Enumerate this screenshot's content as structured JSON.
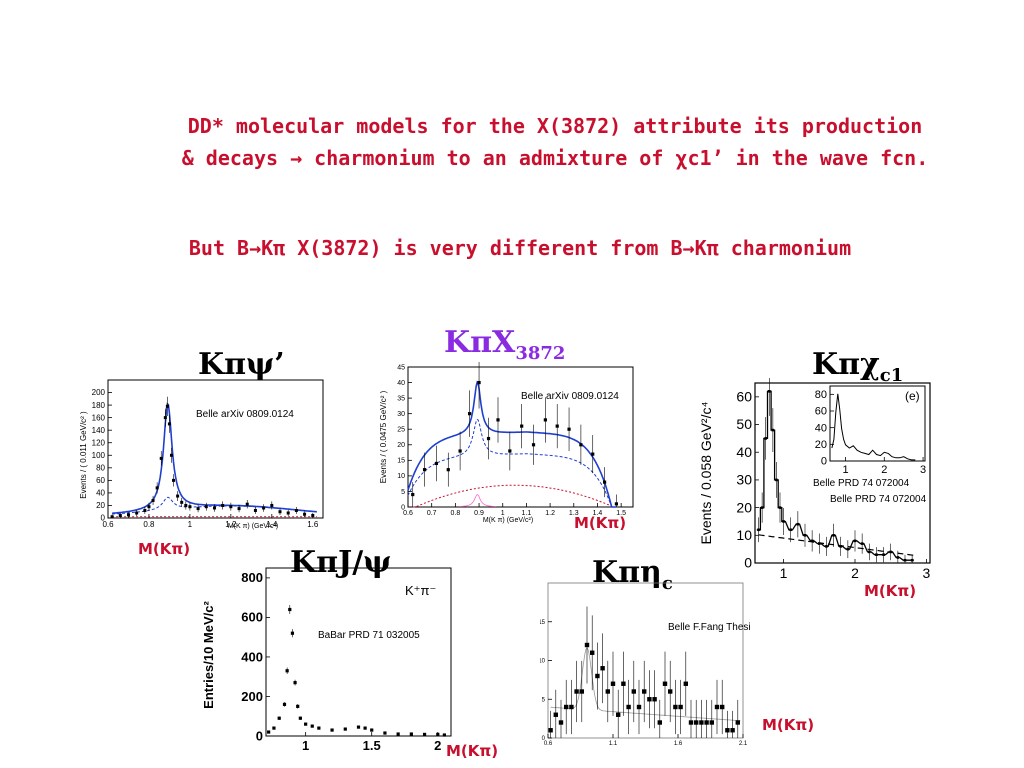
{
  "slide": {
    "title_line1": "DD* molecular models for the X(3872) attribute its production",
    "title_line2": "& decays → charmonium to an admixture of χc1’ in the wave fcn.",
    "subtitle": "But B→Kπ X(3872) is very different from B→Kπ charmonium"
  },
  "labels": {
    "kpsiprime": "Kπψ’",
    "kpiX": "KπX",
    "kpiX_sub": "3872",
    "kpichic1": "Kπχ",
    "kpichic1_sub": "c1",
    "kpiJpsi": "KπJ/ψ",
    "kpietac": "Kπη",
    "kpietac_sub": "c",
    "mass_label": "M(Kπ)"
  },
  "refs": {
    "belle1": "Belle arXiv 0809.0124",
    "belle2": "Belle arXiv 0809.0124",
    "belle_prd_a": "Belle PRD 74 072004",
    "belle_prd_b": "Belle PRD 74 072004",
    "babar": "BaBar PRD 71 032005",
    "fang": "Belle F.Fang Thesis"
  },
  "panels": {
    "p1": {
      "ylabel": "Events / ( 0.011 GeV/c² )",
      "xlabel": "M(K π) (GeV/c²)"
    },
    "p2": {
      "ylabel": "Events / ( 0.0475 GeV/c² )",
      "xlabel": "M(K π) (GeV/c²)"
    },
    "p3": {
      "ylabel": "Events / 0.058 GeV²/c⁴",
      "inset_tag": "(e)"
    },
    "p4": {
      "ylabel": "Entries/10 MeV/c²",
      "legend": "K⁺π⁻"
    }
  },
  "chart_data": [
    {
      "id": "kpsiprime",
      "type": "scatter",
      "xlim": [
        0.6,
        1.65
      ],
      "ylim": [
        0,
        220
      ],
      "xticks": [
        0.6,
        0.8,
        1,
        1.2,
        1.4,
        1.6
      ],
      "yticks": [
        0,
        20,
        40,
        60,
        80,
        100,
        120,
        140,
        160,
        180,
        200
      ],
      "x": [
        0.62,
        0.66,
        0.7,
        0.74,
        0.78,
        0.8,
        0.82,
        0.84,
        0.86,
        0.88,
        0.89,
        0.9,
        0.91,
        0.92,
        0.94,
        0.96,
        0.98,
        1.0,
        1.04,
        1.08,
        1.12,
        1.16,
        1.2,
        1.24,
        1.28,
        1.32,
        1.36,
        1.4,
        1.44,
        1.48,
        1.52,
        1.56,
        1.6
      ],
      "y": [
        2,
        4,
        5,
        8,
        12,
        18,
        28,
        48,
        95,
        160,
        178,
        150,
        100,
        60,
        35,
        25,
        20,
        18,
        15,
        18,
        16,
        20,
        18,
        15,
        22,
        12,
        16,
        20,
        10,
        8,
        12,
        6,
        4
      ]
    },
    {
      "id": "kpiX",
      "type": "scatter",
      "xlim": [
        0.6,
        1.55
      ],
      "ylim": [
        0,
        45
      ],
      "xticks": [
        0.6,
        0.7,
        0.8,
        0.9,
        1,
        1.1,
        1.2,
        1.3,
        1.4,
        1.5
      ],
      "yticks": [
        0,
        5,
        10,
        15,
        20,
        25,
        30,
        35,
        40,
        45
      ],
      "x": [
        0.62,
        0.67,
        0.72,
        0.77,
        0.82,
        0.86,
        0.9,
        0.94,
        0.98,
        1.03,
        1.08,
        1.13,
        1.18,
        1.23,
        1.28,
        1.33,
        1.38,
        1.43,
        1.48
      ],
      "y": [
        4,
        12,
        14,
        12,
        18,
        30,
        40,
        22,
        28,
        18,
        26,
        20,
        28,
        26,
        25,
        20,
        17,
        8,
        1
      ]
    },
    {
      "id": "kpichic1",
      "type": "line",
      "xlim": [
        0.6,
        3.05
      ],
      "ylim": [
        0,
        65
      ],
      "xticks": [
        1,
        2,
        3
      ],
      "yticks": [
        0,
        10,
        20,
        30,
        40,
        50,
        60
      ],
      "x": [
        0.65,
        0.7,
        0.75,
        0.8,
        0.85,
        0.9,
        0.95,
        1.0,
        1.1,
        1.2,
        1.3,
        1.4,
        1.5,
        1.6,
        1.7,
        1.8,
        1.9,
        2.0,
        2.1,
        2.2,
        2.3,
        2.4,
        2.5,
        2.6,
        2.7,
        2.8
      ],
      "y": [
        12,
        20,
        45,
        62,
        48,
        30,
        20,
        15,
        12,
        14,
        10,
        8,
        7,
        6,
        10,
        6,
        5,
        8,
        7,
        4,
        3,
        3,
        4,
        2,
        1,
        1
      ]
    },
    {
      "id": "kpiJpsi",
      "type": "scatter",
      "xlim": [
        0.7,
        2.1
      ],
      "ylim": [
        0,
        850
      ],
      "xticks": [
        1,
        1.5,
        2
      ],
      "yticks": [
        0,
        200,
        400,
        600,
        800
      ],
      "x": [
        0.72,
        0.76,
        0.8,
        0.84,
        0.86,
        0.88,
        0.9,
        0.92,
        0.94,
        0.96,
        1.0,
        1.05,
        1.1,
        1.2,
        1.3,
        1.4,
        1.45,
        1.5,
        1.6,
        1.7,
        1.8,
        1.9,
        2.0,
        2.05
      ],
      "y": [
        20,
        40,
        90,
        160,
        330,
        640,
        520,
        270,
        150,
        90,
        60,
        50,
        40,
        30,
        35,
        45,
        40,
        30,
        15,
        10,
        10,
        8,
        8,
        5
      ]
    },
    {
      "id": "kpietac",
      "type": "scatter",
      "xlim": [
        0.6,
        2.1
      ],
      "ylim": [
        0,
        20
      ],
      "xticks": [
        0.6,
        1.1,
        1.6,
        2.1
      ],
      "yticks": [
        0,
        5,
        10,
        15
      ],
      "x": [
        0.62,
        0.66,
        0.7,
        0.74,
        0.78,
        0.82,
        0.86,
        0.9,
        0.94,
        0.98,
        1.02,
        1.06,
        1.1,
        1.14,
        1.18,
        1.22,
        1.26,
        1.3,
        1.34,
        1.38,
        1.42,
        1.46,
        1.5,
        1.54,
        1.58,
        1.62,
        1.66,
        1.7,
        1.74,
        1.78,
        1.82,
        1.86,
        1.9,
        1.94,
        1.98,
        2.02,
        2.06
      ],
      "y": [
        1,
        3,
        2,
        4,
        4,
        6,
        6,
        12,
        11,
        8,
        9,
        6,
        7,
        3,
        7,
        4,
        6,
        4,
        6,
        5,
        5,
        2,
        7,
        6,
        4,
        4,
        7,
        2,
        2,
        2,
        2,
        2,
        4,
        4,
        1,
        1,
        2
      ]
    }
  ]
}
